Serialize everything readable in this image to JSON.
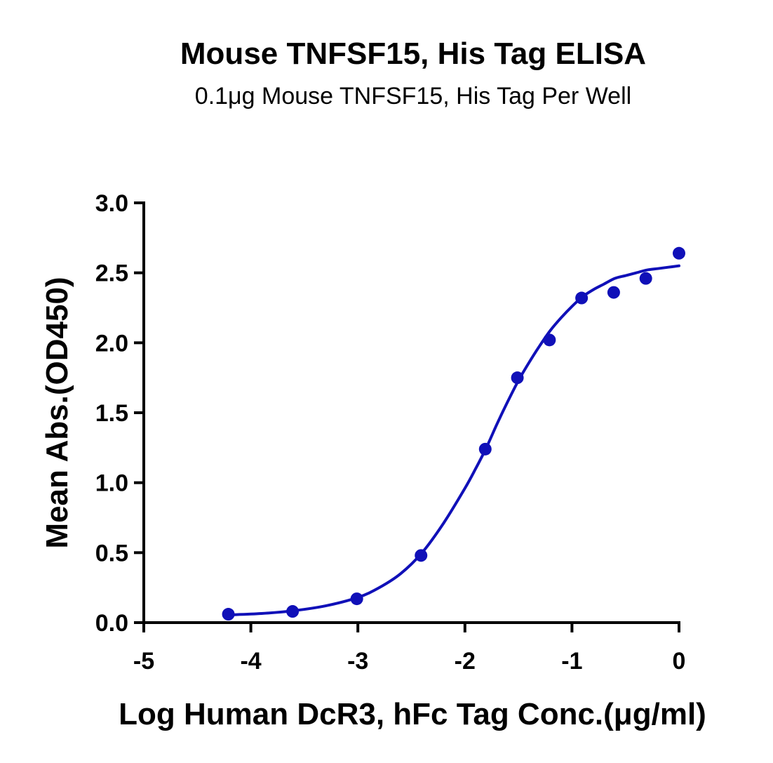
{
  "chart_data": {
    "type": "scatter",
    "title": "Mouse TNFSF15, His Tag ELISA",
    "subtitle": "0.1μg Mouse TNFSF15, His Tag Per Well",
    "xlabel": "Log Human DcR3, hFc Tag Conc.(μg/ml)",
    "ylabel": "Mean Abs.(OD450)",
    "xlim": [
      -5,
      0
    ],
    "ylim": [
      0,
      3.0
    ],
    "xticks": [
      -5,
      -4,
      -3,
      -2,
      -1,
      0
    ],
    "xtick_labels": [
      "-5",
      "-4",
      "-3",
      "-2",
      "-1",
      "0"
    ],
    "yticks": [
      0,
      0.5,
      1.0,
      1.5,
      2.0,
      2.5,
      3.0
    ],
    "ytick_labels": [
      "0.0",
      "0.5",
      "1.0",
      "1.5",
      "2.0",
      "2.5",
      "3.0"
    ],
    "grid": false,
    "series": [
      {
        "color": "#1010b8",
        "x": [
          -4.21,
          -3.61,
          -3.01,
          -2.41,
          -1.81,
          -1.51,
          -1.21,
          -0.91,
          -0.61,
          -0.31,
          0.0
        ],
        "y": [
          0.06,
          0.08,
          0.17,
          0.48,
          1.24,
          1.75,
          2.02,
          2.32,
          2.36,
          2.46,
          2.64
        ]
      }
    ],
    "fit_curve": {
      "color": "#1010b8",
      "x": [
        -4.21,
        -3.9,
        -3.6,
        -3.3,
        -3.0,
        -2.8,
        -2.6,
        -2.4,
        -2.2,
        -2.0,
        -1.9,
        -1.8,
        -1.7,
        -1.6,
        -1.5,
        -1.4,
        -1.3,
        -1.2,
        -1.1,
        -1.0,
        -0.9,
        -0.8,
        -0.7,
        -0.6,
        -0.5,
        -0.4,
        -0.3,
        -0.2,
        -0.1,
        0.0
      ],
      "y": [
        0.055,
        0.065,
        0.085,
        0.12,
        0.18,
        0.25,
        0.35,
        0.5,
        0.71,
        0.96,
        1.1,
        1.25,
        1.42,
        1.58,
        1.73,
        1.86,
        1.98,
        2.09,
        2.18,
        2.26,
        2.33,
        2.38,
        2.42,
        2.46,
        2.48,
        2.5,
        2.52,
        2.53,
        2.54,
        2.55
      ]
    }
  }
}
